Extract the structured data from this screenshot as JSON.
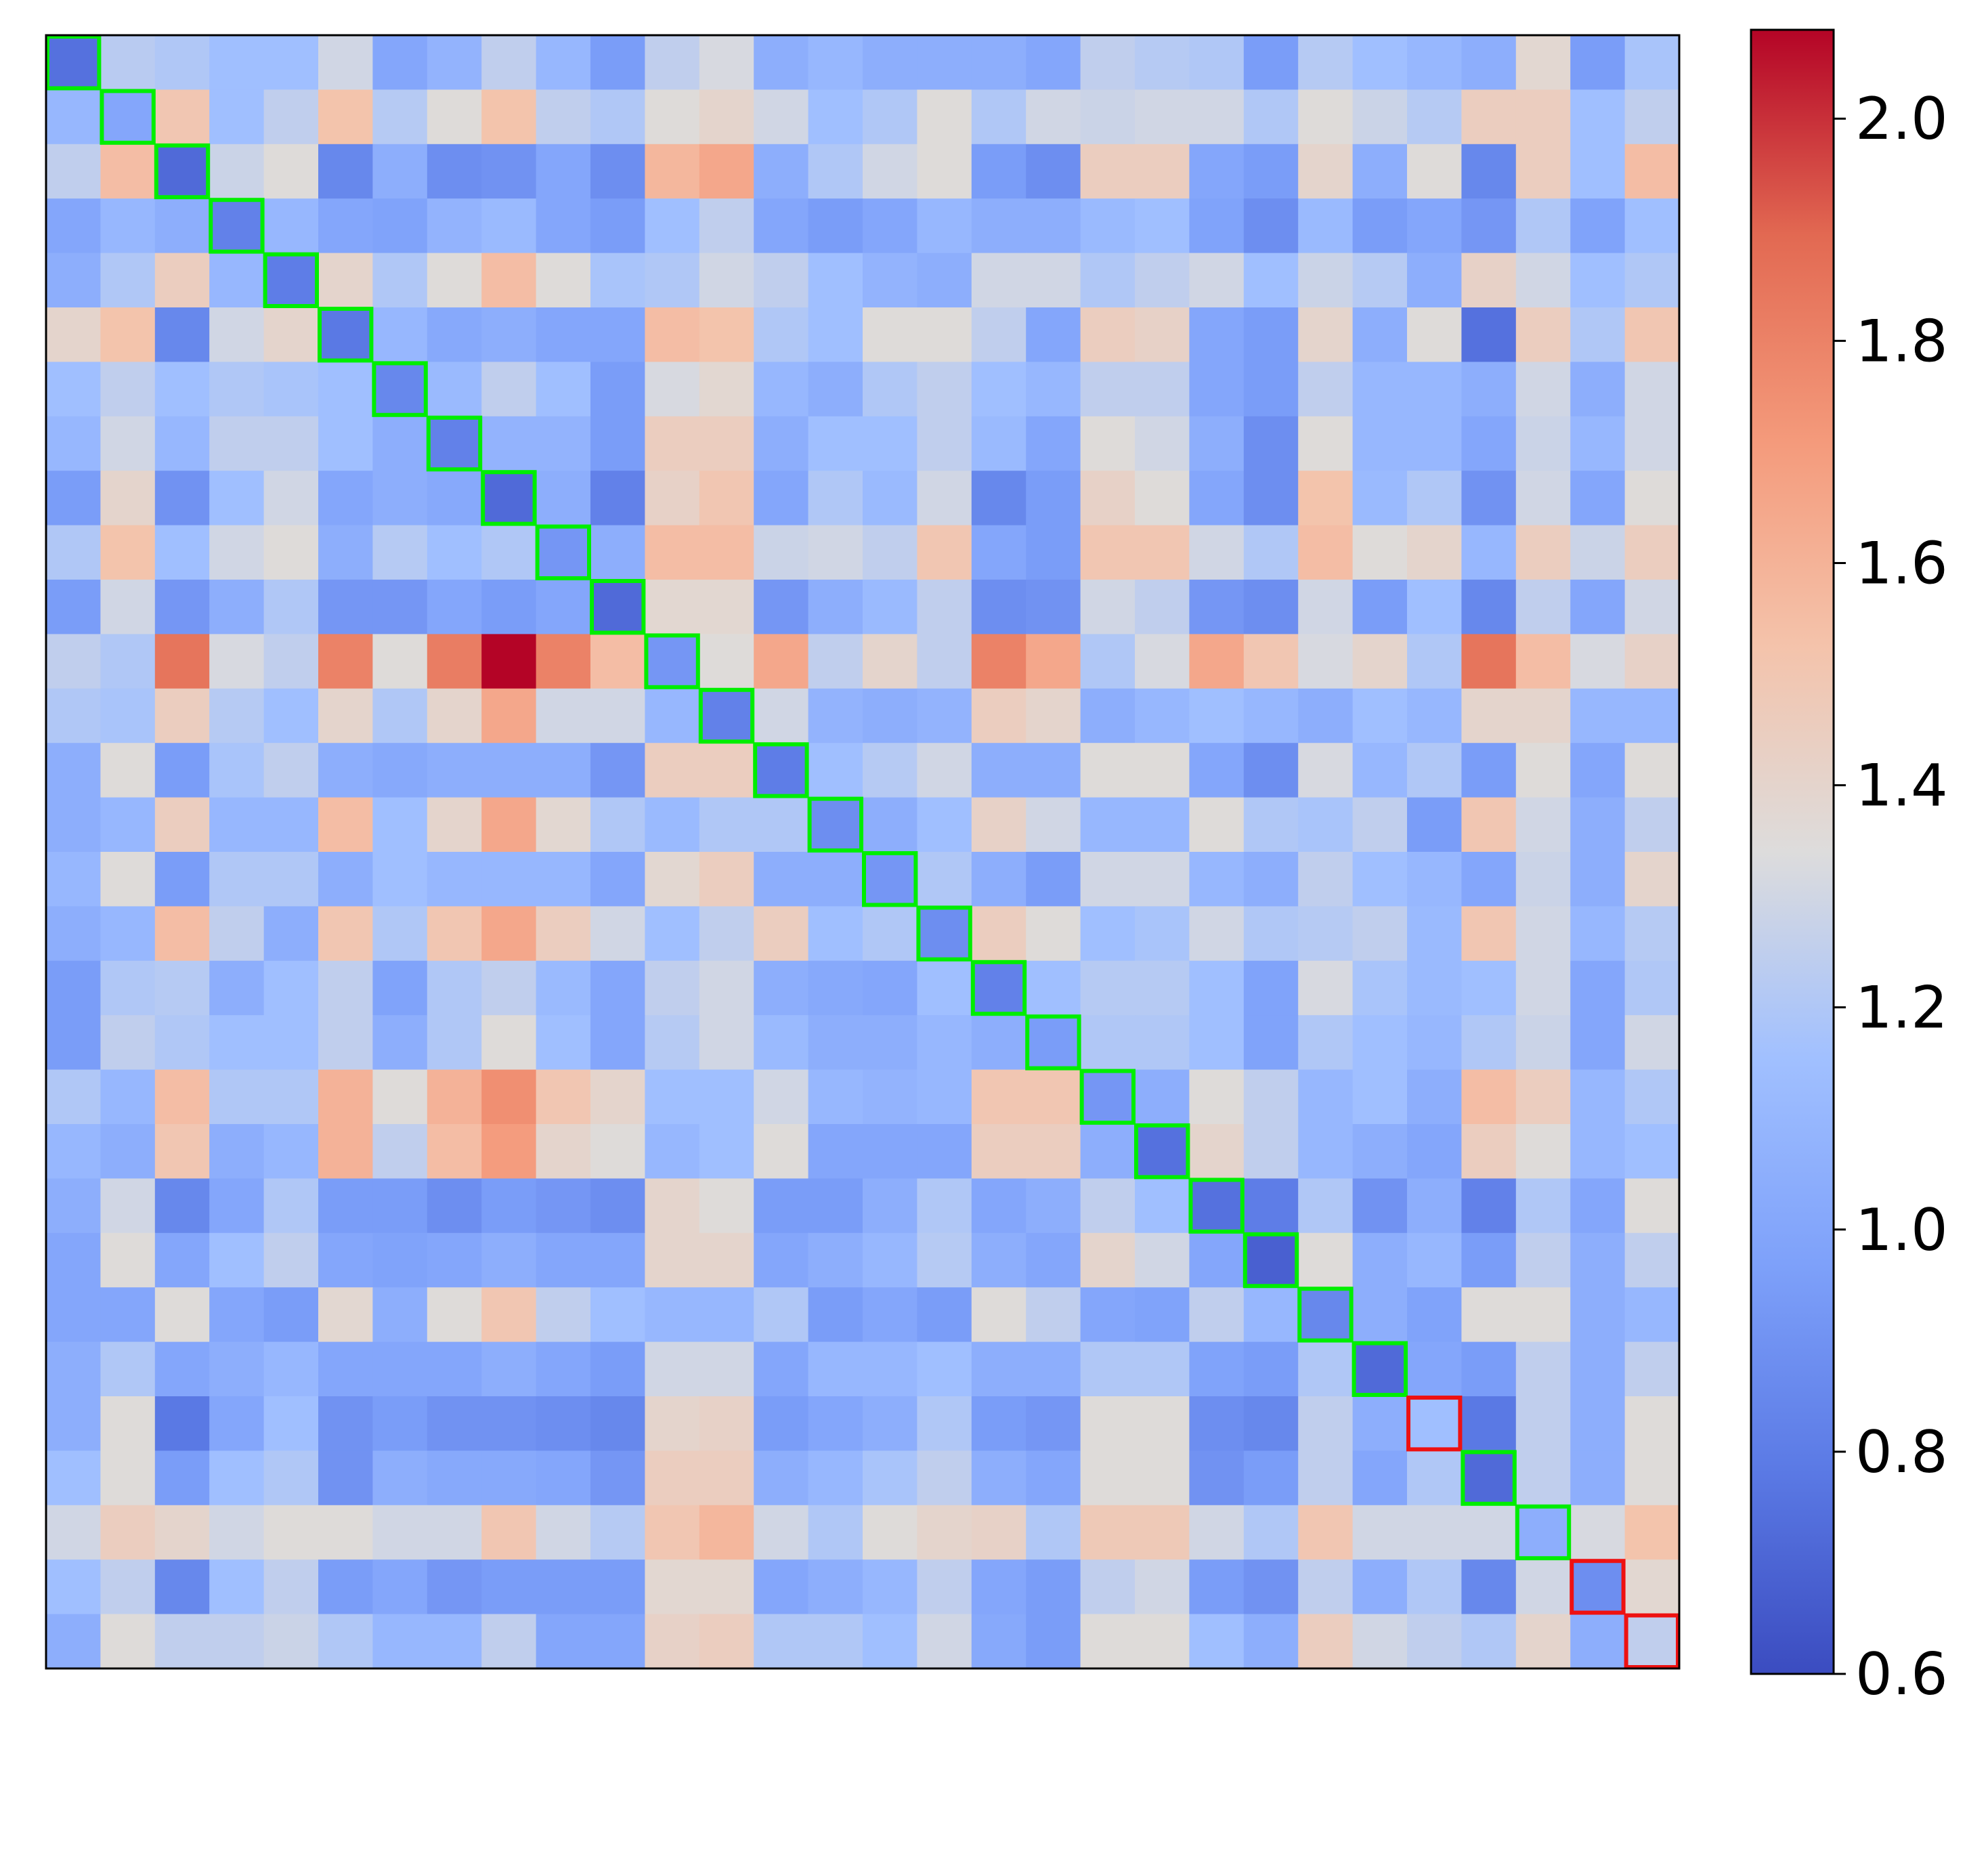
{
  "chart_data": {
    "type": "heatmap",
    "title": "",
    "xlabel": "",
    "ylabel": "",
    "colormap": "coolwarm",
    "vmin": 0.6,
    "vmax": 2.08,
    "colorbar": {
      "ticks": [
        0.6,
        0.8,
        1.0,
        1.2,
        1.4,
        1.6,
        1.8,
        2.0
      ],
      "tick_labels": [
        "0.6",
        "0.8",
        "1.0",
        "1.2",
        "1.4",
        "1.6",
        "1.8",
        "2.0"
      ],
      "placement": "right"
    },
    "diagonal_highlight": {
      "green_color": "#00ee00",
      "red_color": "#ee1111",
      "red_indices": [
        25,
        28,
        29
      ]
    },
    "values": [
      [
        0.75,
        1.23,
        1.2,
        1.15,
        1.15,
        1.3,
        1.0,
        1.08,
        1.25,
        1.1,
        0.95,
        1.25,
        1.32,
        1.05,
        1.1,
        1.05,
        1.05,
        1.05,
        1.0,
        1.25,
        1.22,
        1.2,
        0.95,
        1.22,
        1.15,
        1.1,
        1.05,
        1.38,
        0.95,
        1.18
      ],
      [
        1.1,
        1.0,
        1.5,
        1.15,
        1.25,
        1.52,
        1.22,
        1.35,
        1.52,
        1.25,
        1.2,
        1.35,
        1.4,
        1.3,
        1.15,
        1.2,
        1.35,
        1.2,
        1.3,
        1.28,
        1.3,
        1.3,
        1.2,
        1.35,
        1.28,
        1.22,
        1.45,
        1.45,
        1.15,
        1.25
      ],
      [
        1.25,
        1.55,
        0.72,
        1.28,
        1.35,
        0.85,
        1.05,
        0.88,
        0.9,
        1.0,
        0.88,
        1.58,
        1.65,
        1.05,
        1.2,
        1.3,
        1.35,
        0.95,
        0.88,
        1.45,
        1.45,
        1.0,
        0.95,
        1.4,
        1.05,
        1.35,
        0.85,
        1.45,
        1.15,
        1.55
      ],
      [
        1.0,
        1.1,
        1.05,
        0.82,
        1.1,
        1.0,
        0.98,
        1.08,
        1.12,
        1.0,
        0.95,
        1.15,
        1.25,
        1.0,
        0.95,
        1.0,
        1.1,
        1.05,
        1.05,
        1.12,
        1.15,
        0.98,
        0.88,
        1.12,
        0.95,
        1.0,
        0.92,
        1.2,
        0.98,
        1.15
      ],
      [
        1.05,
        1.2,
        1.45,
        1.1,
        0.8,
        1.4,
        1.2,
        1.35,
        1.55,
        1.35,
        1.18,
        1.2,
        1.3,
        1.25,
        1.15,
        1.08,
        1.05,
        1.3,
        1.3,
        1.2,
        1.25,
        1.3,
        1.15,
        1.28,
        1.22,
        1.05,
        1.42,
        1.3,
        1.15,
        1.2
      ],
      [
        1.4,
        1.52,
        0.85,
        1.3,
        1.4,
        0.78,
        1.1,
        1.02,
        1.05,
        1.0,
        1.0,
        1.55,
        1.52,
        1.2,
        1.15,
        1.35,
        1.35,
        1.25,
        1.0,
        1.45,
        1.42,
        1.0,
        0.95,
        1.4,
        1.05,
        1.35,
        0.75,
        1.45,
        1.2,
        1.5
      ],
      [
        1.15,
        1.25,
        1.15,
        1.2,
        1.18,
        1.15,
        0.85,
        1.12,
        1.25,
        1.15,
        0.95,
        1.32,
        1.38,
        1.1,
        1.05,
        1.2,
        1.25,
        1.15,
        1.1,
        1.25,
        1.25,
        1.0,
        0.95,
        1.25,
        1.1,
        1.1,
        1.05,
        1.3,
        1.05,
        1.3
      ],
      [
        1.1,
        1.3,
        1.1,
        1.25,
        1.25,
        1.15,
        1.05,
        0.82,
        1.08,
        1.08,
        0.95,
        1.45,
        1.45,
        1.05,
        1.15,
        1.15,
        1.25,
        1.12,
        1.0,
        1.35,
        1.3,
        1.05,
        0.88,
        1.35,
        1.1,
        1.1,
        1.0,
        1.28,
        1.1,
        1.3
      ],
      [
        0.95,
        1.4,
        0.9,
        1.15,
        1.3,
        1.0,
        1.05,
        1.02,
        0.72,
        1.05,
        0.82,
        1.42,
        1.5,
        1.0,
        1.2,
        1.12,
        1.3,
        0.85,
        0.95,
        1.42,
        1.35,
        1.0,
        0.88,
        1.52,
        1.12,
        1.2,
        0.9,
        1.3,
        1.0,
        1.35
      ],
      [
        1.2,
        1.52,
        1.15,
        1.3,
        1.35,
        1.05,
        1.22,
        1.15,
        1.2,
        0.92,
        1.05,
        1.55,
        1.55,
        1.28,
        1.3,
        1.25,
        1.5,
        1.0,
        0.95,
        1.5,
        1.5,
        1.3,
        1.2,
        1.55,
        1.35,
        1.4,
        1.1,
        1.45,
        1.28,
        1.45
      ],
      [
        0.95,
        1.3,
        0.92,
        1.05,
        1.2,
        0.92,
        0.92,
        1.0,
        0.95,
        1.0,
        0.72,
        1.38,
        1.38,
        0.92,
        1.05,
        1.12,
        1.25,
        0.88,
        0.9,
        1.3,
        1.25,
        0.92,
        0.88,
        1.3,
        0.95,
        1.15,
        0.85,
        1.25,
        1.0,
        1.3
      ],
      [
        1.25,
        1.2,
        1.85,
        1.32,
        1.25,
        1.8,
        1.35,
        1.82,
        2.08,
        1.8,
        1.55,
        0.92,
        1.35,
        1.65,
        1.25,
        1.4,
        1.25,
        1.8,
        1.65,
        1.2,
        1.32,
        1.65,
        1.5,
        1.32,
        1.4,
        1.2,
        1.85,
        1.55,
        1.32,
        1.42
      ],
      [
        1.2,
        1.18,
        1.45,
        1.22,
        1.15,
        1.4,
        1.2,
        1.4,
        1.65,
        1.3,
        1.3,
        1.1,
        0.82,
        1.3,
        1.08,
        1.05,
        1.08,
        1.45,
        1.4,
        1.05,
        1.1,
        1.15,
        1.1,
        1.05,
        1.15,
        1.1,
        1.4,
        1.4,
        1.1,
        1.1
      ],
      [
        1.05,
        1.35,
        0.95,
        1.18,
        1.25,
        1.05,
        1.02,
        1.05,
        1.05,
        1.05,
        0.92,
        1.45,
        1.45,
        0.8,
        1.15,
        1.22,
        1.3,
        1.05,
        1.05,
        1.35,
        1.35,
        1.0,
        0.88,
        1.32,
        1.1,
        1.2,
        0.95,
        1.35,
        1.0,
        1.35
      ],
      [
        1.05,
        1.1,
        1.45,
        1.1,
        1.1,
        1.55,
        1.15,
        1.4,
        1.65,
        1.38,
        1.2,
        1.12,
        1.2,
        1.2,
        0.88,
        1.05,
        1.15,
        1.42,
        1.3,
        1.1,
        1.1,
        1.35,
        1.2,
        1.18,
        1.25,
        0.95,
        1.5,
        1.3,
        1.05,
        1.25
      ],
      [
        1.1,
        1.35,
        0.95,
        1.2,
        1.2,
        1.05,
        1.15,
        1.1,
        1.1,
        1.1,
        1.0,
        1.38,
        1.45,
        1.05,
        1.05,
        0.92,
        1.2,
        1.05,
        0.95,
        1.3,
        1.3,
        1.1,
        1.05,
        1.25,
        1.15,
        1.1,
        1.0,
        1.28,
        1.05,
        1.4
      ],
      [
        1.05,
        1.1,
        1.55,
        1.25,
        1.05,
        1.5,
        1.2,
        1.5,
        1.65,
        1.45,
        1.3,
        1.15,
        1.25,
        1.45,
        1.15,
        1.2,
        0.88,
        1.45,
        1.35,
        1.15,
        1.18,
        1.3,
        1.2,
        1.22,
        1.25,
        1.12,
        1.5,
        1.3,
        1.1,
        1.22
      ],
      [
        0.95,
        1.2,
        1.22,
        1.05,
        1.15,
        1.25,
        0.98,
        1.2,
        1.25,
        1.12,
        1.0,
        1.25,
        1.3,
        1.05,
        1.02,
        1.0,
        1.15,
        0.82,
        1.15,
        1.22,
        1.22,
        1.15,
        0.98,
        1.32,
        1.18,
        1.12,
        1.15,
        1.3,
        1.0,
        1.2
      ],
      [
        0.95,
        1.25,
        1.2,
        1.15,
        1.15,
        1.25,
        1.05,
        1.2,
        1.35,
        1.15,
        1.0,
        1.22,
        1.3,
        1.12,
        1.05,
        1.05,
        1.1,
        1.05,
        0.95,
        1.2,
        1.2,
        1.15,
        0.98,
        1.2,
        1.15,
        1.1,
        1.2,
        1.28,
        1.0,
        1.3
      ],
      [
        1.2,
        1.1,
        1.55,
        1.2,
        1.2,
        1.6,
        1.35,
        1.6,
        1.75,
        1.5,
        1.4,
        1.15,
        1.15,
        1.3,
        1.1,
        1.08,
        1.1,
        1.5,
        1.5,
        0.92,
        1.05,
        1.35,
        1.25,
        1.1,
        1.15,
        1.05,
        1.55,
        1.45,
        1.1,
        1.2
      ],
      [
        1.1,
        1.05,
        1.5,
        1.05,
        1.1,
        1.6,
        1.25,
        1.55,
        1.7,
        1.4,
        1.35,
        1.1,
        1.15,
        1.35,
        1.0,
        1.0,
        1.0,
        1.45,
        1.45,
        1.05,
        0.75,
        1.4,
        1.25,
        1.1,
        1.05,
        1.0,
        1.45,
        1.35,
        1.1,
        1.15
      ],
      [
        1.05,
        1.3,
        0.85,
        1.0,
        1.2,
        0.95,
        0.95,
        0.88,
        0.95,
        0.92,
        0.88,
        1.4,
        1.35,
        0.95,
        0.95,
        1.05,
        1.2,
        1.0,
        1.05,
        1.25,
        1.15,
        0.75,
        0.8,
        1.2,
        0.9,
        1.05,
        0.82,
        1.2,
        1.0,
        1.35
      ],
      [
        1.0,
        1.35,
        1.0,
        1.15,
        1.25,
        1.0,
        0.98,
        1.0,
        1.05,
        1.0,
        1.0,
        1.4,
        1.4,
        1.0,
        1.05,
        1.1,
        1.22,
        1.05,
        1.0,
        1.4,
        1.3,
        1.0,
        0.68,
        1.35,
        1.05,
        1.1,
        0.95,
        1.25,
        1.05,
        1.25
      ],
      [
        1.0,
        1.0,
        1.35,
        1.0,
        0.95,
        1.38,
        1.05,
        1.35,
        1.5,
        1.25,
        1.15,
        1.1,
        1.1,
        1.2,
        0.95,
        1.0,
        0.95,
        1.35,
        1.25,
        1.0,
        0.98,
        1.25,
        1.1,
        0.85,
        1.05,
        0.98,
        1.35,
        1.35,
        1.05,
        1.1
      ],
      [
        1.05,
        1.2,
        1.0,
        1.05,
        1.1,
        1.0,
        1.0,
        1.0,
        1.05,
        1.0,
        0.95,
        1.3,
        1.3,
        1.0,
        1.1,
        1.1,
        1.15,
        1.05,
        1.05,
        1.2,
        1.2,
        0.98,
        0.95,
        1.2,
        0.72,
        1.0,
        0.95,
        1.25,
        1.05,
        1.25
      ],
      [
        1.05,
        1.35,
        0.78,
        1.0,
        1.15,
        0.9,
        0.95,
        0.9,
        0.9,
        0.88,
        0.85,
        1.4,
        1.42,
        0.95,
        1.0,
        1.05,
        1.2,
        0.95,
        0.92,
        1.35,
        1.35,
        0.88,
        0.85,
        1.25,
        1.05,
        1.15,
        0.78,
        1.25,
        1.05,
        1.35
      ],
      [
        1.15,
        1.35,
        0.95,
        1.15,
        1.2,
        0.9,
        1.05,
        1.02,
        1.02,
        1.0,
        0.92,
        1.45,
        1.45,
        1.05,
        1.1,
        1.18,
        1.25,
        1.05,
        1.0,
        1.35,
        1.35,
        0.9,
        0.95,
        1.25,
        1.0,
        1.2,
        0.72,
        1.25,
        1.05,
        1.35
      ],
      [
        1.3,
        1.45,
        1.4,
        1.3,
        1.35,
        1.35,
        1.3,
        1.3,
        1.5,
        1.3,
        1.22,
        1.5,
        1.58,
        1.3,
        1.2,
        1.35,
        1.4,
        1.42,
        1.2,
        1.48,
        1.48,
        1.3,
        1.2,
        1.5,
        1.3,
        1.3,
        1.3,
        1.05,
        1.32,
        1.52
      ],
      [
        1.15,
        1.25,
        0.85,
        1.15,
        1.25,
        0.95,
        1.0,
        0.92,
        0.95,
        0.95,
        0.95,
        1.38,
        1.38,
        1.0,
        1.05,
        1.1,
        1.25,
        1.0,
        0.95,
        1.25,
        1.3,
        0.95,
        0.9,
        1.25,
        1.05,
        1.2,
        0.85,
        1.3,
        0.88,
        1.38
      ],
      [
        1.05,
        1.35,
        1.25,
        1.25,
        1.28,
        1.2,
        1.1,
        1.1,
        1.25,
        1.0,
        1.0,
        1.42,
        1.45,
        1.2,
        1.2,
        1.15,
        1.3,
        1.02,
        0.95,
        1.35,
        1.35,
        1.15,
        1.05,
        1.45,
        1.3,
        1.25,
        1.2,
        1.4,
        1.05,
        1.25
      ]
    ]
  }
}
